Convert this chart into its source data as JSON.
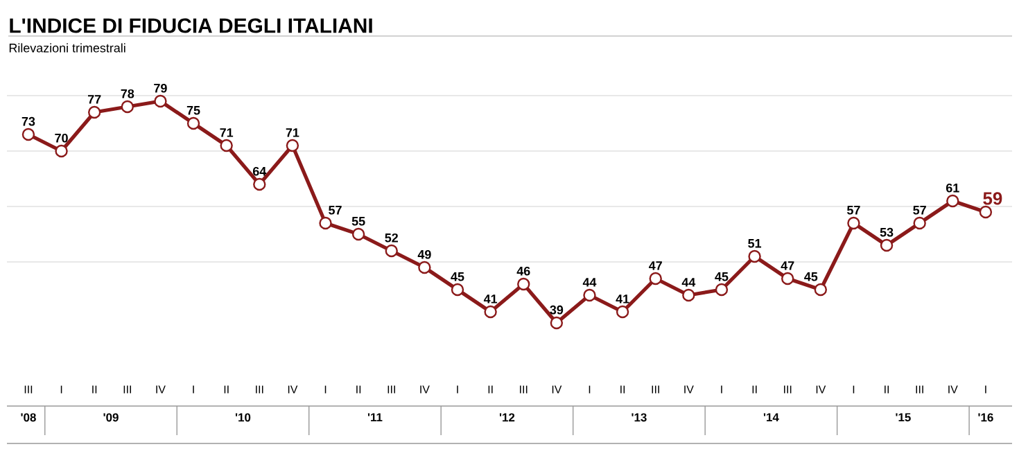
{
  "chart_data": {
    "type": "line",
    "title": "L'INDICE DI FIDUCIA DEGLI ITALIANI",
    "subtitle": "Rilevazioni trimestrali",
    "categories": [
      "III",
      "I",
      "II",
      "III",
      "IV",
      "I",
      "II",
      "III",
      "IV",
      "I",
      "II",
      "III",
      "IV",
      "I",
      "II",
      "III",
      "IV",
      "I",
      "II",
      "III",
      "IV",
      "I",
      "II",
      "III",
      "IV",
      "I",
      "II",
      "III",
      "IV",
      "I"
    ],
    "values": [
      73,
      70,
      77,
      78,
      79,
      75,
      71,
      64,
      71,
      57,
      55,
      52,
      49,
      45,
      41,
      46,
      39,
      44,
      41,
      47,
      44,
      45,
      51,
      47,
      45,
      57,
      53,
      57,
      61,
      59
    ],
    "color": "#8b1a1a",
    "annotations": [
      "'08",
      "'09",
      "'10",
      "'11",
      "'12",
      "'13",
      "'14",
      "'15",
      "'16"
    ],
    "ylim": [
      24,
      80
    ],
    "yticks": [
      {
        "value": 50,
        "label": null
      },
      {
        "value": 60,
        "label": null
      },
      {
        "value": 70,
        "label": null
      },
      {
        "value": 80,
        "label": null
      }
    ],
    "grid": "y",
    "tick_labels": "x",
    "data_labels": true,
    "marker": "circle",
    "line_style": "solid"
  }
}
